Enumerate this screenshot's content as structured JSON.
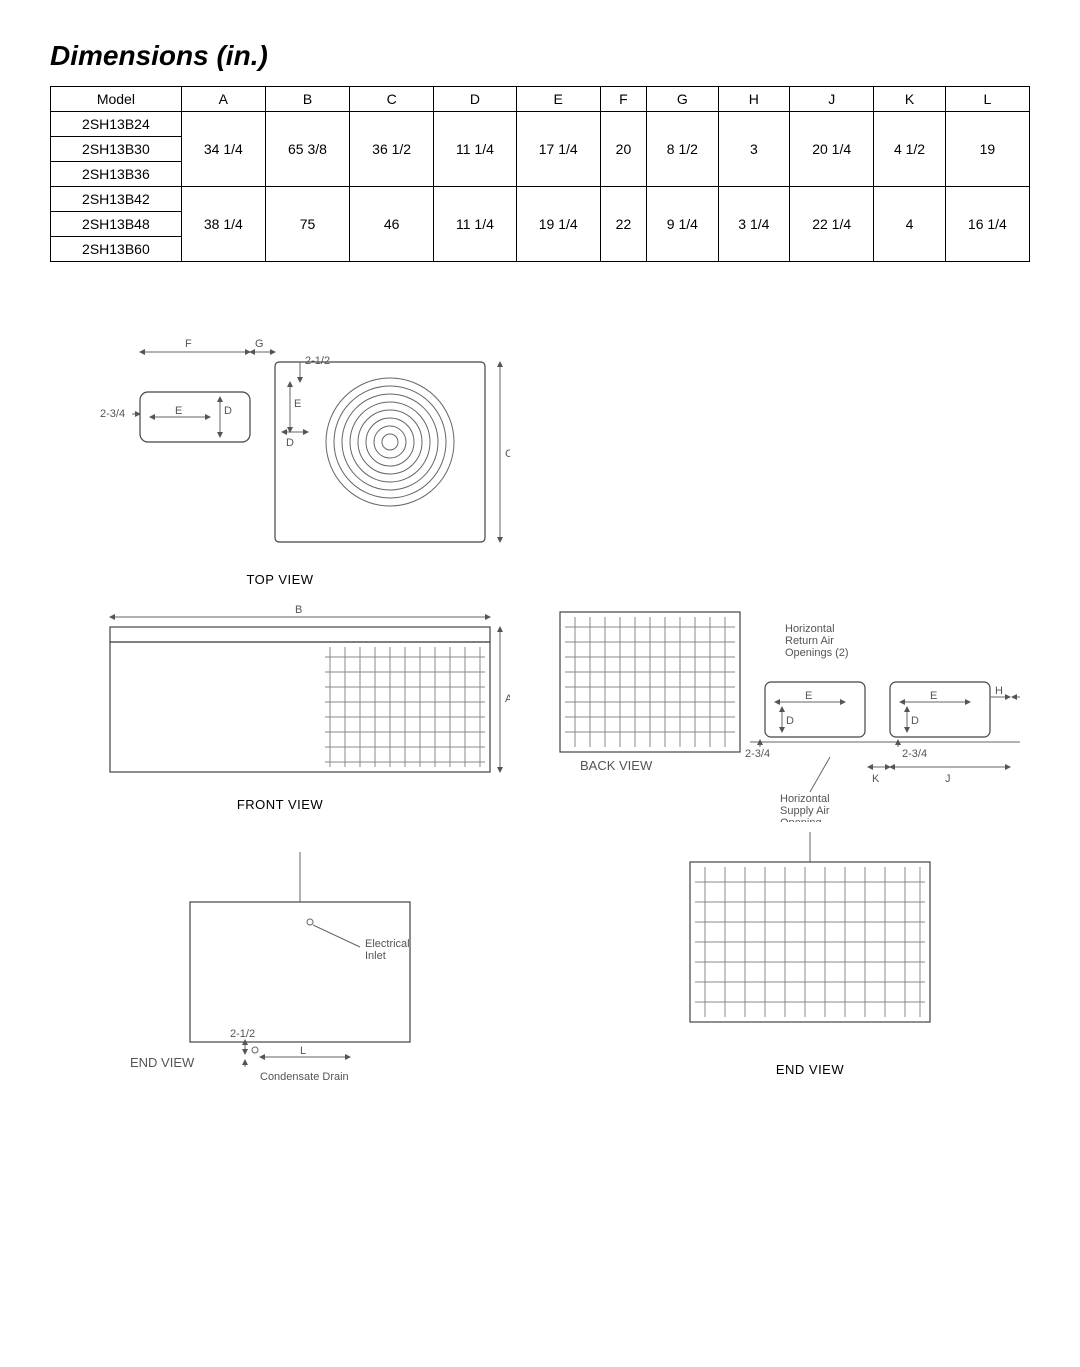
{
  "title": "Dimensions (in.)",
  "table": {
    "columns": [
      "Model",
      "A",
      "B",
      "C",
      "D",
      "E",
      "F",
      "G",
      "H",
      "J",
      "K",
      "L"
    ],
    "groups": [
      {
        "models": [
          "2SH13B24",
          "2SH13B30",
          "2SH13B36"
        ],
        "values": [
          "34 1/4",
          "65 3/8",
          "36 1/2",
          "11 1/4",
          "17 1/4",
          "20",
          "8 1/2",
          "3",
          "20 1/4",
          "4 1/2",
          "19"
        ]
      },
      {
        "models": [
          "2SH13B42",
          "2SH13B48",
          "2SH13B60"
        ],
        "values": [
          "38 1/4",
          "75",
          "46",
          "11 1/4",
          "19 1/4",
          "22",
          "9 1/4",
          "3 1/4",
          "22 1/4",
          "4",
          "16 1/4"
        ]
      }
    ]
  },
  "diagrams": {
    "top_view": {
      "label": "TOP VIEW",
      "dims": {
        "F": "F",
        "G": "G",
        "v_2_1_2": "2-1/2",
        "h_2_3_4": "2-3/4",
        "E": "E",
        "D": "D",
        "C": "C"
      }
    },
    "front_view": {
      "label": "FRONT VIEW",
      "dims": {
        "B": "B",
        "A": "A"
      }
    },
    "back_view": {
      "label": "BACK VIEW",
      "notes": {
        "return_air": "Horizontal\nReturn Air\nOpenings (2)",
        "supply_air": "Horizontal\nSupply Air\nOpening"
      },
      "dims": {
        "E": "E",
        "D": "D",
        "H": "H",
        "K": "K",
        "J": "J",
        "v_2_3_4_left": "2-3/4",
        "v_2_3_4_right": "2-3/4"
      }
    },
    "end_view_left": {
      "label": "END VIEW",
      "notes": {
        "electrical": "Electrical\nInlet",
        "condensate": "Condensate Drain"
      },
      "dims": {
        "v_2_1_2": "2-1/2",
        "L": "L"
      }
    },
    "end_view_right": {
      "label": "END VIEW"
    }
  },
  "colors": {
    "text": "#000000",
    "line": "#666666",
    "outline": "#444444",
    "grille": "#888888",
    "background": "#ffffff"
  }
}
